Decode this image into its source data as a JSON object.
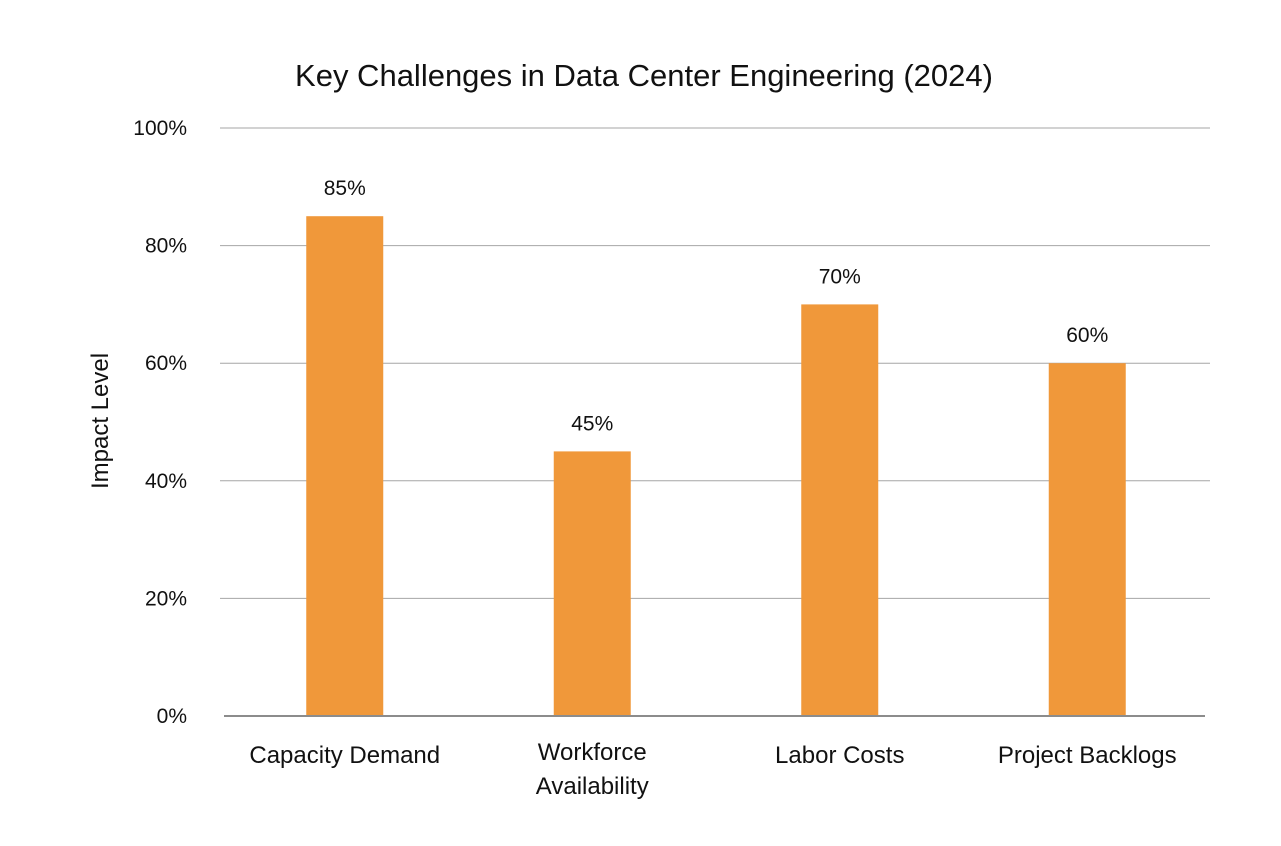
{
  "chart_data": {
    "type": "bar",
    "title": "Key Challenges in Data Center Engineering (2024)",
    "xlabel": "",
    "ylabel": "Impact Level",
    "ylim": [
      0,
      100
    ],
    "yticks": [
      0,
      20,
      40,
      60,
      80,
      100
    ],
    "ytick_labels": [
      "0%",
      "20%",
      "40%",
      "60%",
      "80%",
      "100%"
    ],
    "grid": true,
    "legend": "none",
    "categories": [
      [
        "Capacity Demand"
      ],
      [
        "Workforce",
        "Availability"
      ],
      [
        "Labor Costs"
      ],
      [
        "Project Backlogs"
      ]
    ],
    "values": [
      85,
      45,
      70,
      60
    ],
    "data_labels": [
      "85%",
      "45%",
      "70%",
      "60%"
    ],
    "bar_color": "#f0983a"
  }
}
